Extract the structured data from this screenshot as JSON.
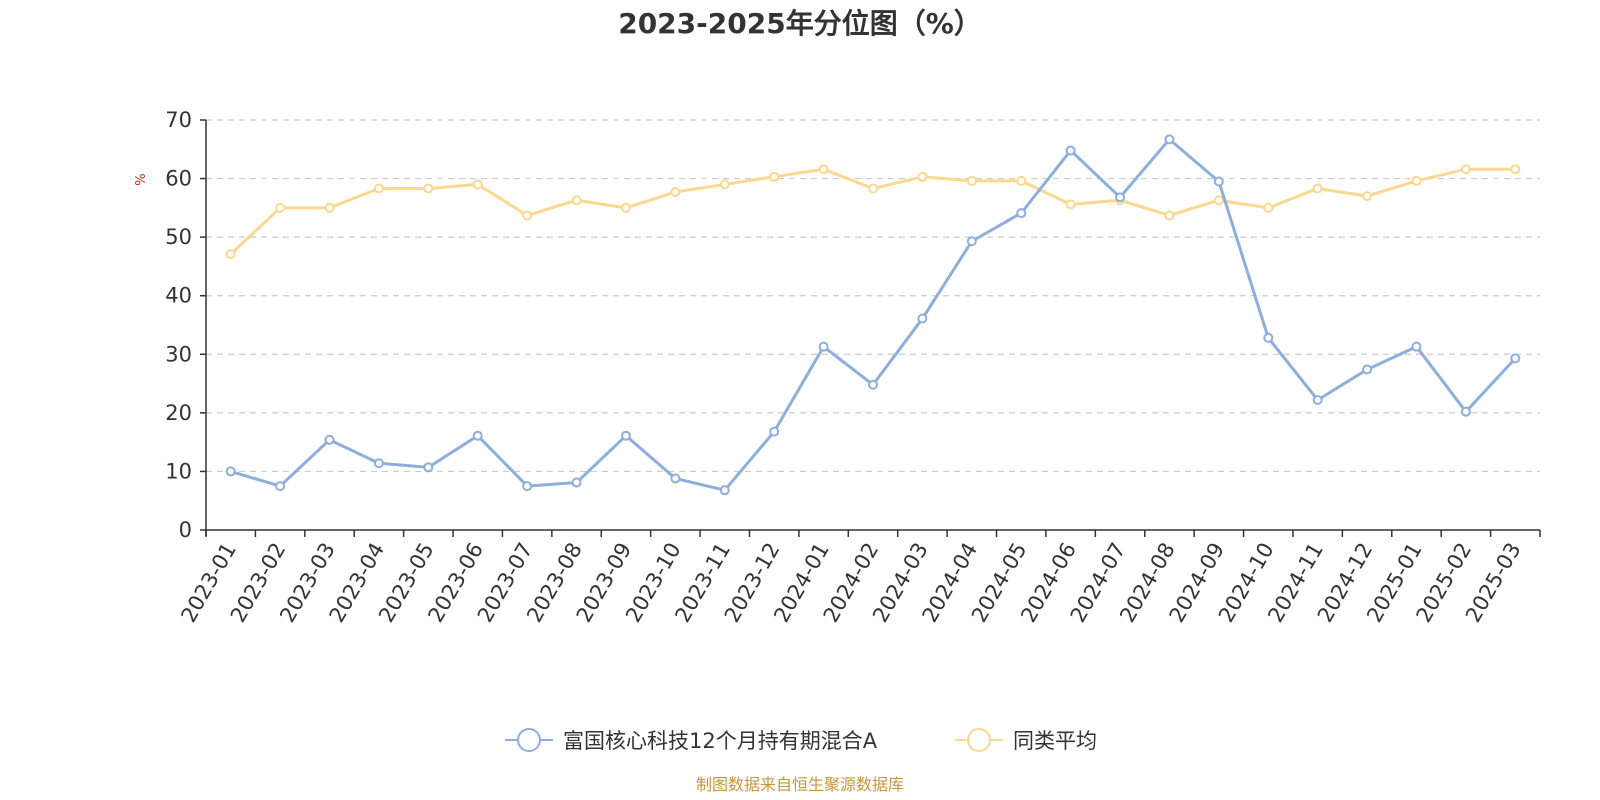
{
  "chart_data": {
    "type": "line",
    "title": "2023-2025年分位图（%）",
    "ylabel": "%",
    "ylim": [
      0,
      70
    ],
    "yticks": [
      0,
      10,
      20,
      30,
      40,
      50,
      60,
      70
    ],
    "grid": true,
    "legend_position": "bottom",
    "categories": [
      "2023-01",
      "2023-02",
      "2023-03",
      "2023-04",
      "2023-05",
      "2023-06",
      "2023-07",
      "2023-08",
      "2023-09",
      "2023-10",
      "2023-11",
      "2023-12",
      "2024-01",
      "2024-02",
      "2024-03",
      "2024-04",
      "2024-05",
      "2024-06",
      "2024-07",
      "2024-08",
      "2024-09",
      "2024-10",
      "2024-11",
      "2024-12",
      "2025-01",
      "2025-02",
      "2025-03"
    ],
    "series": [
      {
        "name": "富国核心科技12个月持有期混合A",
        "color": "#8eaedb",
        "values": [
          10.0,
          7.5,
          15.4,
          11.4,
          10.7,
          16.1,
          7.5,
          8.1,
          16.1,
          8.8,
          6.8,
          16.8,
          31.3,
          24.8,
          36.1,
          49.3,
          54.1,
          64.8,
          56.8,
          66.7,
          59.5,
          32.8,
          22.2,
          27.4,
          31.3,
          20.2,
          29.3
        ]
      },
      {
        "name": "同类平均",
        "color": "#fbd88f",
        "values": [
          47.1,
          55.0,
          55.0,
          58.3,
          58.3,
          59.0,
          53.7,
          56.3,
          55.0,
          57.7,
          59.0,
          60.3,
          61.6,
          58.3,
          60.3,
          59.6,
          59.6,
          55.6,
          56.3,
          53.7,
          56.3,
          55.0,
          58.3,
          57.0,
          59.6,
          61.6,
          61.6
        ]
      }
    ]
  },
  "source": "制图数据来自恒生聚源数据库",
  "colors": {
    "axis": "#333333",
    "grid": "#cccccc",
    "ylabel": "#e02020",
    "source": "#c8963c"
  }
}
